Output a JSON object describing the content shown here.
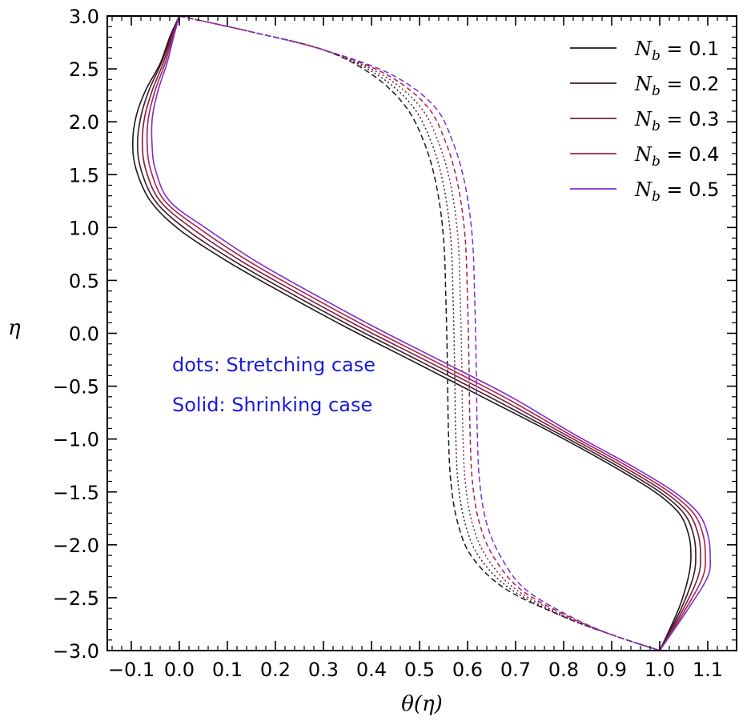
{
  "chart_data": {
    "type": "line",
    "xlabel": "θ(η)",
    "ylabel": "η",
    "xlim": [
      -0.15,
      1.16
    ],
    "ylim": [
      -3.0,
      3.0
    ],
    "xticks": [
      -0.1,
      0.0,
      0.1,
      0.2,
      0.3,
      0.4,
      0.5,
      0.6,
      0.7,
      0.8,
      0.9,
      1.0,
      1.1
    ],
    "xtick_labels": [
      "−0.1",
      "0.0",
      "0.1",
      "0.2",
      "0.3",
      "0.4",
      "0.5",
      "0.6",
      "0.7",
      "0.8",
      "0.9",
      "1.0",
      "1.1"
    ],
    "yticks": [
      3.0,
      2.5,
      2.0,
      1.5,
      1.0,
      0.5,
      0.0,
      -0.5,
      -1.0,
      -1.5,
      -2.0,
      -2.5,
      -3.0
    ],
    "ytick_labels": [
      "3.0",
      "2.5",
      "2.0",
      "1.5",
      "1.0",
      "0.5",
      "0.0",
      "−0.5",
      "−1.0",
      "−1.5",
      "−2.0",
      "−2.5",
      "−3.0"
    ],
    "grid": false,
    "legend_position": "top-right",
    "annotations": [
      "dots: Stretching case",
      "Solid: Shrinking case"
    ],
    "annotation_color": "#1a1adb",
    "legend_symbol": "N",
    "legend_subscript": "b",
    "legend_eq": "=",
    "series": [
      {
        "name": "0.1",
        "color": "#1a1a1a",
        "shrinking": [
          [
            1.0,
            -3.0
          ],
          [
            1.04,
            -2.6
          ],
          [
            1.06,
            -2.3
          ],
          [
            1.065,
            -2.1
          ],
          [
            1.06,
            -1.9
          ],
          [
            1.04,
            -1.7
          ],
          [
            0.99,
            -1.5
          ],
          [
            0.9,
            -1.25
          ],
          [
            0.78,
            -0.95
          ],
          [
            0.63,
            -0.6
          ],
          [
            0.48,
            -0.25
          ],
          [
            0.35,
            0.05
          ],
          [
            0.22,
            0.37
          ],
          [
            0.1,
            0.68
          ],
          [
            0.0,
            0.98
          ],
          [
            -0.06,
            1.25
          ],
          [
            -0.09,
            1.55
          ],
          [
            -0.097,
            1.8
          ],
          [
            -0.09,
            2.05
          ],
          [
            -0.07,
            2.3
          ],
          [
            -0.04,
            2.55
          ],
          [
            -0.02,
            2.8
          ],
          [
            0.0,
            3.0
          ]
        ],
        "stretching": [
          [
            0.0,
            3.0
          ],
          [
            0.15,
            2.85
          ],
          [
            0.3,
            2.68
          ],
          [
            0.4,
            2.45
          ],
          [
            0.47,
            2.15
          ],
          [
            0.51,
            1.8
          ],
          [
            0.535,
            1.4
          ],
          [
            0.55,
            0.9
          ],
          [
            0.555,
            0.3
          ],
          [
            0.558,
            -0.3
          ],
          [
            0.56,
            -0.9
          ],
          [
            0.565,
            -1.4
          ],
          [
            0.58,
            -1.8
          ],
          [
            0.61,
            -2.12
          ],
          [
            0.68,
            -2.42
          ],
          [
            0.8,
            -2.68
          ],
          [
            0.9,
            -2.85
          ],
          [
            1.0,
            -3.0
          ]
        ]
      },
      {
        "name": "0.2",
        "color": "#3d1a2a",
        "shrinking": [
          [
            1.0,
            -3.0
          ],
          [
            1.045,
            -2.6
          ],
          [
            1.07,
            -2.3
          ],
          [
            1.075,
            -2.1
          ],
          [
            1.07,
            -1.9
          ],
          [
            1.05,
            -1.7
          ],
          [
            1.0,
            -1.5
          ],
          [
            0.91,
            -1.25
          ],
          [
            0.79,
            -0.95
          ],
          [
            0.645,
            -0.6
          ],
          [
            0.495,
            -0.25
          ],
          [
            0.365,
            0.05
          ],
          [
            0.235,
            0.37
          ],
          [
            0.115,
            0.68
          ],
          [
            0.015,
            0.98
          ],
          [
            -0.05,
            1.25
          ],
          [
            -0.08,
            1.55
          ],
          [
            -0.087,
            1.8
          ],
          [
            -0.08,
            2.05
          ],
          [
            -0.063,
            2.3
          ],
          [
            -0.038,
            2.55
          ],
          [
            -0.018,
            2.8
          ],
          [
            0.0,
            3.0
          ]
        ],
        "stretching": [
          [
            0.0,
            3.0
          ],
          [
            0.15,
            2.85
          ],
          [
            0.3,
            2.68
          ],
          [
            0.41,
            2.45
          ],
          [
            0.485,
            2.15
          ],
          [
            0.525,
            1.8
          ],
          [
            0.55,
            1.4
          ],
          [
            0.565,
            0.9
          ],
          [
            0.57,
            0.3
          ],
          [
            0.573,
            -0.3
          ],
          [
            0.575,
            -0.9
          ],
          [
            0.58,
            -1.4
          ],
          [
            0.595,
            -1.8
          ],
          [
            0.625,
            -2.12
          ],
          [
            0.69,
            -2.42
          ],
          [
            0.8,
            -2.68
          ],
          [
            0.9,
            -2.85
          ],
          [
            1.0,
            -3.0
          ]
        ]
      },
      {
        "name": "0.3",
        "color": "#7a1f3d",
        "shrinking": [
          [
            1.0,
            -3.0
          ],
          [
            1.05,
            -2.6
          ],
          [
            1.08,
            -2.3
          ],
          [
            1.085,
            -2.1
          ],
          [
            1.08,
            -1.9
          ],
          [
            1.06,
            -1.7
          ],
          [
            1.01,
            -1.5
          ],
          [
            0.92,
            -1.25
          ],
          [
            0.8,
            -0.95
          ],
          [
            0.66,
            -0.6
          ],
          [
            0.51,
            -0.25
          ],
          [
            0.38,
            0.05
          ],
          [
            0.25,
            0.37
          ],
          [
            0.13,
            0.68
          ],
          [
            0.03,
            0.98
          ],
          [
            -0.04,
            1.25
          ],
          [
            -0.07,
            1.55
          ],
          [
            -0.077,
            1.8
          ],
          [
            -0.072,
            2.05
          ],
          [
            -0.056,
            2.3
          ],
          [
            -0.034,
            2.55
          ],
          [
            -0.016,
            2.8
          ],
          [
            0.0,
            3.0
          ]
        ],
        "stretching": [
          [
            0.0,
            3.0
          ],
          [
            0.15,
            2.85
          ],
          [
            0.3,
            2.68
          ],
          [
            0.42,
            2.45
          ],
          [
            0.5,
            2.15
          ],
          [
            0.54,
            1.8
          ],
          [
            0.565,
            1.4
          ],
          [
            0.58,
            0.9
          ],
          [
            0.585,
            0.3
          ],
          [
            0.588,
            -0.3
          ],
          [
            0.59,
            -0.9
          ],
          [
            0.595,
            -1.4
          ],
          [
            0.61,
            -1.8
          ],
          [
            0.64,
            -2.12
          ],
          [
            0.7,
            -2.42
          ],
          [
            0.805,
            -2.68
          ],
          [
            0.9,
            -2.85
          ],
          [
            1.0,
            -3.0
          ]
        ]
      },
      {
        "name": "0.4",
        "color": "#b01e4c",
        "shrinking": [
          [
            1.0,
            -3.0
          ],
          [
            1.055,
            -2.6
          ],
          [
            1.09,
            -2.3
          ],
          [
            1.095,
            -2.1
          ],
          [
            1.09,
            -1.9
          ],
          [
            1.07,
            -1.7
          ],
          [
            1.02,
            -1.5
          ],
          [
            0.93,
            -1.25
          ],
          [
            0.81,
            -0.95
          ],
          [
            0.675,
            -0.6
          ],
          [
            0.525,
            -0.25
          ],
          [
            0.395,
            0.05
          ],
          [
            0.265,
            0.37
          ],
          [
            0.145,
            0.68
          ],
          [
            0.045,
            0.98
          ],
          [
            -0.03,
            1.25
          ],
          [
            -0.06,
            1.55
          ],
          [
            -0.067,
            1.8
          ],
          [
            -0.064,
            2.05
          ],
          [
            -0.05,
            2.3
          ],
          [
            -0.03,
            2.55
          ],
          [
            -0.014,
            2.8
          ],
          [
            0.0,
            3.0
          ]
        ],
        "stretching": [
          [
            0.0,
            3.0
          ],
          [
            0.15,
            2.85
          ],
          [
            0.3,
            2.68
          ],
          [
            0.43,
            2.45
          ],
          [
            0.515,
            2.15
          ],
          [
            0.555,
            1.8
          ],
          [
            0.58,
            1.4
          ],
          [
            0.595,
            0.9
          ],
          [
            0.6,
            0.3
          ],
          [
            0.603,
            -0.3
          ],
          [
            0.605,
            -0.9
          ],
          [
            0.61,
            -1.4
          ],
          [
            0.625,
            -1.8
          ],
          [
            0.655,
            -2.12
          ],
          [
            0.71,
            -2.42
          ],
          [
            0.81,
            -2.68
          ],
          [
            0.9,
            -2.85
          ],
          [
            1.0,
            -3.0
          ]
        ]
      },
      {
        "name": "0.5",
        "color": "#7b2fd0",
        "shrinking": [
          [
            1.0,
            -3.0
          ],
          [
            1.06,
            -2.6
          ],
          [
            1.1,
            -2.3
          ],
          [
            1.105,
            -2.1
          ],
          [
            1.1,
            -1.9
          ],
          [
            1.08,
            -1.7
          ],
          [
            1.03,
            -1.5
          ],
          [
            0.94,
            -1.25
          ],
          [
            0.82,
            -0.95
          ],
          [
            0.69,
            -0.6
          ],
          [
            0.54,
            -0.25
          ],
          [
            0.41,
            0.05
          ],
          [
            0.28,
            0.37
          ],
          [
            0.16,
            0.68
          ],
          [
            0.06,
            0.98
          ],
          [
            -0.02,
            1.25
          ],
          [
            -0.05,
            1.55
          ],
          [
            -0.057,
            1.8
          ],
          [
            -0.056,
            2.05
          ],
          [
            -0.044,
            2.3
          ],
          [
            -0.026,
            2.55
          ],
          [
            -0.012,
            2.8
          ],
          [
            0.0,
            3.0
          ]
        ],
        "stretching": [
          [
            0.0,
            3.0
          ],
          [
            0.15,
            2.85
          ],
          [
            0.3,
            2.68
          ],
          [
            0.44,
            2.45
          ],
          [
            0.53,
            2.15
          ],
          [
            0.57,
            1.8
          ],
          [
            0.595,
            1.4
          ],
          [
            0.61,
            0.9
          ],
          [
            0.615,
            0.3
          ],
          [
            0.618,
            -0.3
          ],
          [
            0.62,
            -0.9
          ],
          [
            0.625,
            -1.4
          ],
          [
            0.64,
            -1.8
          ],
          [
            0.67,
            -2.12
          ],
          [
            0.72,
            -2.42
          ],
          [
            0.815,
            -2.68
          ],
          [
            0.9,
            -2.85
          ],
          [
            1.0,
            -3.0
          ]
        ]
      }
    ]
  }
}
